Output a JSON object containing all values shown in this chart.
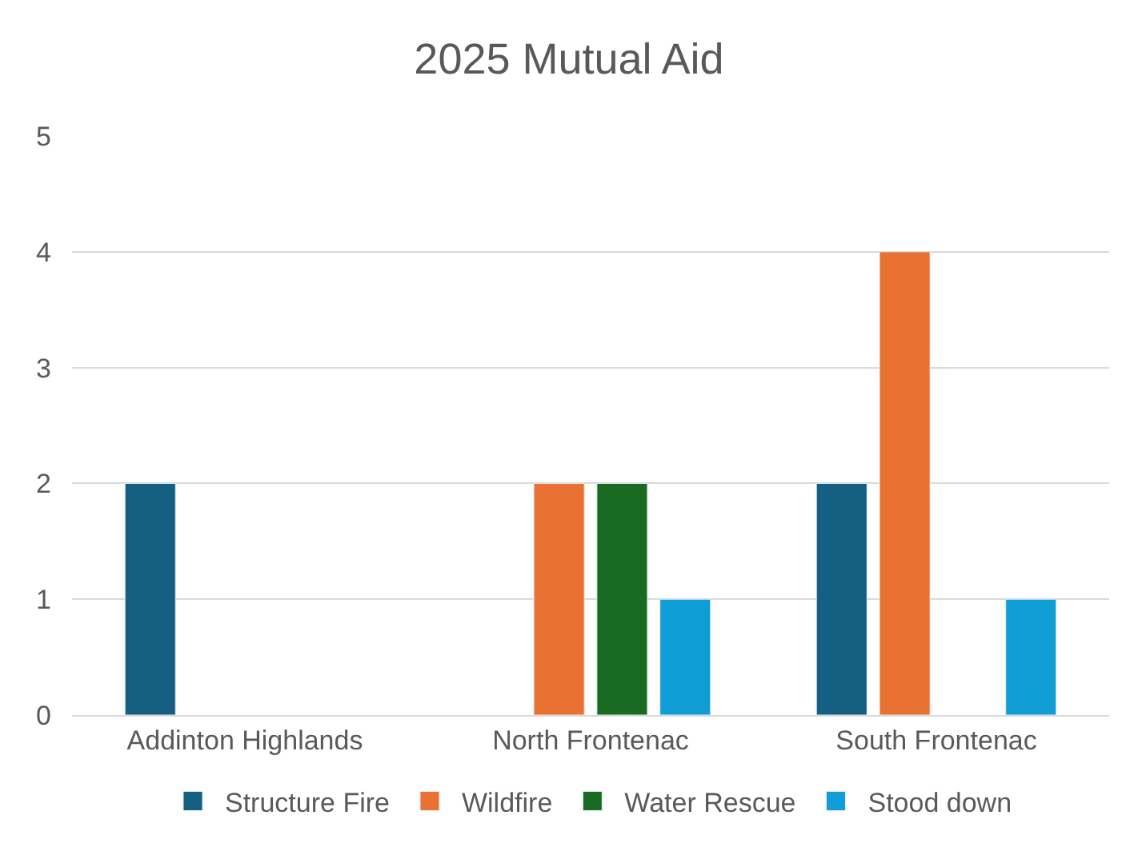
{
  "chart_data": {
    "type": "bar",
    "title": "2025 Mutual Aid",
    "categories": [
      "Addinton Highlands",
      "North Frontenac",
      "South Frontenac"
    ],
    "series": [
      {
        "name": "Structure Fire",
        "color": "#156082",
        "values": [
          2,
          null,
          2
        ]
      },
      {
        "name": "Wildfire",
        "color": "#e97132",
        "values": [
          null,
          2,
          4
        ]
      },
      {
        "name": "Water Rescue",
        "color": "#196b24",
        "values": [
          null,
          2,
          null
        ]
      },
      {
        "name": "Stood down",
        "color": "#0f9ed5",
        "values": [
          null,
          1,
          1
        ]
      }
    ],
    "ylim": [
      0,
      5
    ],
    "yticks": [
      0,
      1,
      2,
      3,
      4,
      5
    ],
    "grid": "y",
    "legend": "bottom"
  }
}
